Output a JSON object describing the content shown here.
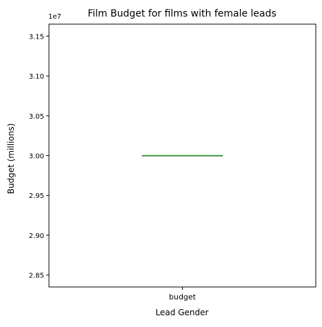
{
  "chart_data": {
    "type": "box",
    "title": "Film Budget for films with female leads",
    "xlabel": "Lead Gender",
    "ylabel": "Budget (millions)",
    "offset_text": "1e7",
    "categories": [
      "budget"
    ],
    "ylim": [
      28350000,
      31650000
    ],
    "yticks": [
      28500000,
      29000000,
      29500000,
      30000000,
      30500000,
      31000000,
      31500000
    ],
    "ytick_labels": [
      "2.85",
      "2.90",
      "2.95",
      "3.00",
      "3.05",
      "3.10",
      "3.15"
    ],
    "series": [
      {
        "values": [
          30000000
        ],
        "median": 30000000,
        "q1": 30000000,
        "q3": 30000000,
        "whisker_low": 30000000,
        "whisker_high": 30000000
      }
    ],
    "grid": false,
    "colors": {
      "box": "#000000",
      "median": "#2ca02c",
      "axes": "#000000"
    }
  }
}
